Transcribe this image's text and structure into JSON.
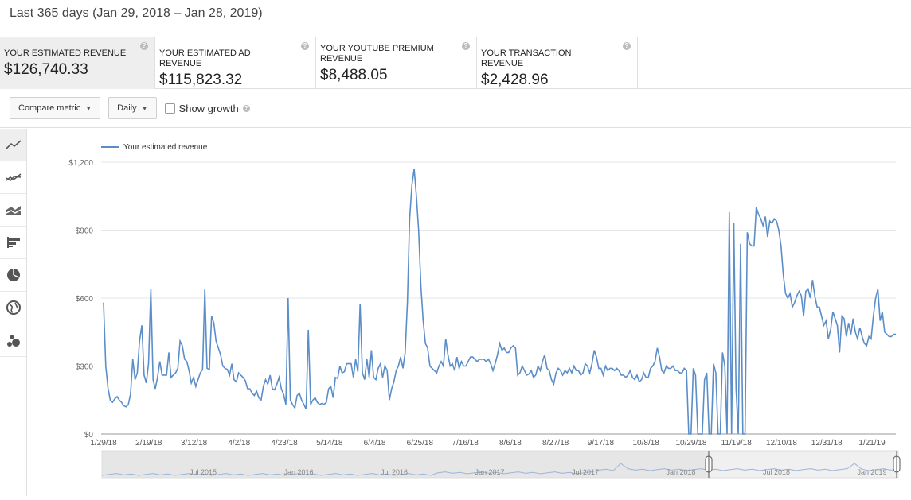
{
  "header": {
    "date_range": "Last 365 days (Jan 29, 2018 – Jan 28, 2019)"
  },
  "metrics": [
    {
      "label": "YOUR ESTIMATED REVENUE",
      "value": "$126,740.33"
    },
    {
      "label": "YOUR ESTIMATED AD REVENUE",
      "value": "$115,823.32"
    },
    {
      "label": "YOUR YOUTUBE PREMIUM REVENUE",
      "value": "$8,488.05"
    },
    {
      "label": "YOUR TRANSACTION REVENUE",
      "value": "$2,428.96"
    }
  ],
  "toolbar": {
    "compare_label": "Compare metric",
    "interval_label": "Daily",
    "growth_label": "Show growth"
  },
  "sidebar": {
    "icons": [
      "line-chart-icon",
      "multi-line-icon",
      "stacked-area-icon",
      "bar-chart-icon",
      "pie-chart-icon",
      "globe-icon",
      "bubble-chart-icon"
    ]
  },
  "accent_color": "#5b8ec9",
  "chart_data": {
    "type": "line",
    "legend": "Your estimated revenue",
    "ylim": [
      0,
      1200
    ],
    "yticks": [
      "$0",
      "$300",
      "$600",
      "$900",
      "$1,200"
    ],
    "xticks": [
      "1/29/18",
      "2/19/18",
      "3/12/18",
      "4/2/18",
      "4/23/18",
      "5/14/18",
      "6/4/18",
      "6/25/18",
      "7/16/18",
      "8/6/18",
      "8/27/18",
      "9/17/18",
      "10/8/18",
      "10/29/18",
      "11/19/18",
      "12/10/18",
      "12/31/18",
      "1/21/19"
    ],
    "navigator_labels": [
      "Jul 2015",
      "Jan 2016",
      "Jul 2016",
      "Jan 2017",
      "Jul 2017",
      "Jan 2018",
      "Jul 2018",
      "Jan 2019"
    ],
    "series": [
      {
        "name": "Your estimated revenue",
        "values": [
          580,
          300,
          200,
          150,
          140,
          155,
          165,
          150,
          140,
          125,
          120,
          130,
          175,
          330,
          240,
          270,
          410,
          480,
          260,
          225,
          310,
          640,
          240,
          200,
          250,
          320,
          260,
          260,
          260,
          360,
          250,
          260,
          270,
          290,
          410,
          390,
          330,
          320,
          280,
          225,
          250,
          210,
          240,
          270,
          285,
          640,
          290,
          285,
          520,
          490,
          410,
          380,
          350,
          300,
          290,
          285,
          260,
          310,
          240,
          230,
          270,
          260,
          250,
          235,
          200,
          200,
          180,
          170,
          190,
          160,
          150,
          210,
          240,
          220,
          260,
          200,
          195,
          220,
          250,
          200,
          175,
          130,
          600,
          150,
          130,
          115,
          170,
          180,
          150,
          130,
          110,
          460,
          130,
          150,
          160,
          140,
          130,
          135,
          130,
          140,
          200,
          210,
          160,
          250,
          245,
          300,
          270,
          275,
          310,
          310,
          310,
          250,
          330,
          275,
          575,
          270,
          240,
          330,
          250,
          370,
          250,
          240,
          290,
          310,
          250,
          300,
          280,
          150,
          200,
          230,
          280,
          300,
          340,
          290,
          360,
          580,
          950,
          1100,
          1170,
          1050,
          900,
          650,
          500,
          400,
          380,
          300,
          290,
          280,
          270,
          300,
          320,
          300,
          420,
          350,
          300,
          310,
          280,
          340,
          290,
          320,
          300,
          300,
          320,
          340,
          340,
          330,
          320,
          330,
          330,
          330,
          320,
          330,
          310,
          280,
          310,
          350,
          400,
          370,
          380,
          360,
          360,
          380,
          390,
          380,
          260,
          270,
          300,
          280,
          260,
          265,
          280,
          250,
          260,
          300,
          280,
          320,
          350,
          290,
          280,
          240,
          220,
          270,
          290,
          280,
          260,
          280,
          270,
          290,
          270,
          300,
          280,
          280,
          260,
          270,
          310,
          300,
          270,
          310,
          370,
          340,
          290,
          290,
          260,
          300,
          280,
          290,
          290,
          280,
          290,
          280,
          260,
          260,
          250,
          260,
          280,
          250,
          240,
          260,
          230,
          240,
          270,
          250,
          250,
          290,
          300,
          320,
          380,
          340,
          280,
          270,
          300,
          290,
          290,
          300,
          280,
          280,
          270,
          270,
          290,
          280,
          0,
          0,
          290,
          260,
          0,
          0,
          0,
          240,
          270,
          0,
          0,
          310,
          270,
          0,
          0,
          360,
          300,
          0,
          980,
          0,
          930,
          200,
          0,
          840,
          0,
          0,
          890,
          840,
          830,
          830,
          1000,
          970,
          950,
          920,
          960,
          870,
          940,
          930,
          950,
          940,
          900,
          830,
          700,
          620,
          600,
          620,
          560,
          580,
          610,
          630,
          610,
          520,
          630,
          640,
          600,
          680,
          610,
          560,
          560,
          520,
          480,
          500,
          420,
          460,
          540,
          510,
          480,
          360,
          520,
          510,
          430,
          490,
          440,
          510,
          450,
          420,
          470,
          430,
          400,
          390,
          430,
          420,
          520,
          600,
          640,
          500,
          540,
          450,
          440,
          430,
          430,
          440,
          440
        ]
      }
    ]
  }
}
